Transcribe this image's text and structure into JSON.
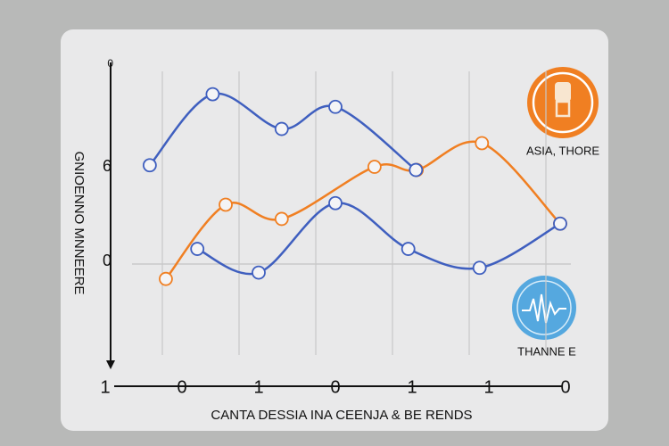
{
  "chart_data": {
    "type": "line",
    "title": "CANTA DESSIA INA CEENJA & BE RENDS",
    "ylabel": "GNIOENNO MNNEERE",
    "xlim": [
      0,
      6
    ],
    "xticks": [
      {
        "value": 0,
        "label": "1"
      },
      {
        "value": 1,
        "label": "0"
      },
      {
        "value": 2,
        "label": "1"
      },
      {
        "value": 3,
        "label": "0"
      },
      {
        "value": 4,
        "label": "1"
      },
      {
        "value": 5,
        "label": "1"
      },
      {
        "value": 6,
        "label": "0"
      }
    ],
    "ylim": [
      -6.6,
      12.5
    ],
    "yticks": [
      {
        "value": 12.5,
        "label": "0"
      },
      6,
      0
    ],
    "grid": true,
    "series": [
      {
        "name": "ASIA, THORE",
        "color": "#f07f22",
        "x": [
          0.79,
          1.57,
          2.3,
          3.51,
          4.06,
          4.91,
          5.93
        ],
        "values": [
          -1.1,
          3.6,
          2.7,
          6.0,
          5.8,
          7.5,
          2.4
        ]
      },
      {
        "name": "THANNE E",
        "color": "#3f5fbf",
        "x": [
          0.58,
          1.4,
          2.3,
          3.0,
          4.05,
          null,
          1.2,
          2.0,
          3.0,
          3.95,
          4.88,
          5.93
        ],
        "values": [
          6.1,
          10.6,
          8.4,
          9.8,
          5.8,
          null,
          0.8,
          -0.7,
          3.7,
          0.8,
          -0.4,
          2.4
        ]
      }
    ]
  }
}
